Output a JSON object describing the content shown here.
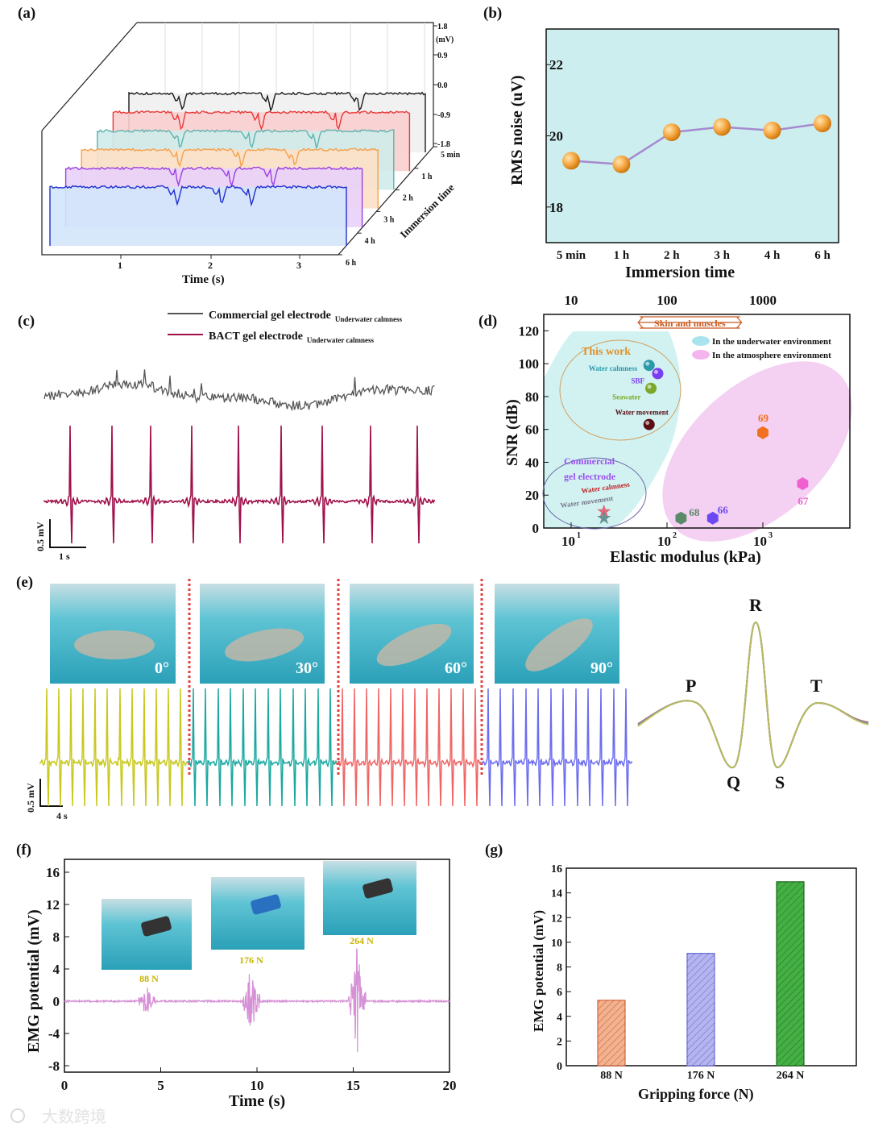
{
  "panel_labels": {
    "a": "(a)",
    "b": "(b)",
    "c": "(c)",
    "d": "(d)",
    "e": "(e)",
    "f": "(f)",
    "g": "(g)"
  },
  "watermark": "大数跨境",
  "chart_data": [
    {
      "panel": "a",
      "type": "line",
      "xlabel": "Time (s)",
      "x_ticks": [
        "1",
        "2",
        "3"
      ],
      "z_label": "Immersion time",
      "y_unit": "(mV)",
      "y_ticks": [
        "1.8",
        "0.9",
        "0.0",
        "-0.9",
        "-1.8"
      ],
      "ylim": [
        -1.8,
        1.8
      ],
      "series": [
        {
          "name": "5 min",
          "color": "#1a1a1a",
          "fill": "#efefef"
        },
        {
          "name": "1 h",
          "color": "#e83838",
          "fill": "#f9cfcf"
        },
        {
          "name": "2 h",
          "color": "#5fb3ad",
          "fill": "#cfeceb"
        },
        {
          "name": "3 h",
          "color": "#f5a04a",
          "fill": "#fde0c6"
        },
        {
          "name": "4 h",
          "color": "#9b3fe0",
          "fill": "#e9d2fb"
        },
        {
          "name": "6 h",
          "color": "#1f2fd0",
          "fill": "#d3e6fb"
        }
      ]
    },
    {
      "panel": "b",
      "type": "line",
      "xlabel": "Immersion time",
      "ylabel": "RMS noise (uV)",
      "categories": [
        "5 min",
        "1 h",
        "2 h",
        "3 h",
        "4 h",
        "6 h"
      ],
      "values": [
        19.3,
        19.2,
        20.1,
        20.25,
        20.15,
        20.35
      ],
      "ylim": [
        17,
        23
      ],
      "y_ticks": [
        18,
        20,
        22
      ],
      "background": "#cdeeee",
      "marker_color": "#f5a540",
      "line_color": "#a58ad0"
    },
    {
      "panel": "c",
      "type": "line",
      "legend": [
        {
          "name": "Commercial gel electrode",
          "sub": "Underwater calmness",
          "color": "#555555"
        },
        {
          "name": "BACT gel electrode",
          "sub": "Underwater calmness",
          "color": "#a0104a"
        }
      ],
      "scale_y": "0.5 mV",
      "scale_x": "1 s",
      "peak_count": 9
    },
    {
      "panel": "d",
      "type": "scatter",
      "xlabel": "Elastic modulus (kPa)",
      "ylabel": "SNR (dB)",
      "xscale": "log",
      "xlim": [
        5.2,
        8000
      ],
      "ylim": [
        0,
        130
      ],
      "x_ticks": [
        10,
        100,
        1000
      ],
      "x_tick_labels": [
        "10",
        "10",
        "10"
      ],
      "x_tick_exps": [
        "1",
        "2",
        "3"
      ],
      "top_ticks": [
        "10",
        "100",
        "1000"
      ],
      "y_ticks": [
        0,
        20,
        40,
        60,
        80,
        100,
        120
      ],
      "range_label": "Skin and muscles",
      "range": [
        50,
        600
      ],
      "legend": [
        {
          "name": "In the underwater environment",
          "color": "#a8e4ee"
        },
        {
          "name": "In the atmosphere environment",
          "color": "#f4b4ee"
        }
      ],
      "groups": [
        {
          "name": "This work",
          "color": "#e0902a"
        },
        {
          "name": "Commercial gel electrode",
          "color": "#9a50ee"
        }
      ],
      "points": [
        {
          "label": "Water calmness",
          "x": 65,
          "y": 99,
          "color": "#2a9aaa",
          "shape": "sphere",
          "group": "This work"
        },
        {
          "label": "SBF",
          "x": 80,
          "y": 94,
          "color": "#7a3ef0",
          "shape": "sphere",
          "group": "This work"
        },
        {
          "label": "Seawater",
          "x": 68,
          "y": 85,
          "color": "#7aa82a",
          "shape": "sphere",
          "group": "This work"
        },
        {
          "label": "Water movement",
          "x": 65,
          "y": 63,
          "color": "#5a0e14",
          "shape": "sphere",
          "group": "This work"
        },
        {
          "label": "Water calmness",
          "x": 22,
          "y": 10,
          "color": "#e05a6a",
          "shape": "star",
          "group": "Commercial gel electrode"
        },
        {
          "label": "Water movement",
          "x": 22,
          "y": 6,
          "color": "#5a8a8a",
          "shape": "star",
          "group": "Commercial gel electrode"
        },
        {
          "label": "68",
          "x": 140,
          "y": 6,
          "color": "#5a8a68",
          "shape": "hexagon"
        },
        {
          "label": "66",
          "x": 300,
          "y": 6,
          "color": "#6a4af0",
          "shape": "hexagon"
        },
        {
          "label": "69",
          "x": 1000,
          "y": 58,
          "color": "#f07020",
          "shape": "hexagon"
        },
        {
          "label": "67",
          "x": 2600,
          "y": 27,
          "color": "#f060d0",
          "shape": "hexagon"
        }
      ]
    },
    {
      "panel": "e",
      "type": "line",
      "angles": [
        {
          "label": "0°",
          "color": "#c8c81e"
        },
        {
          "label": "30°",
          "color": "#1aa8a0"
        },
        {
          "label": "60°",
          "color": "#f06464"
        },
        {
          "label": "90°",
          "color": "#6c6cf0"
        }
      ],
      "scale_y": "0.5 mV",
      "scale_x": "4 s",
      "wave_labels": [
        "P",
        "Q",
        "R",
        "S",
        "T"
      ]
    },
    {
      "panel": "f",
      "type": "line",
      "xlabel": "Time (s)",
      "ylabel": "EMG potential (mV)",
      "xlim": [
        0,
        20
      ],
      "ylim": [
        -8.8,
        17.6
      ],
      "x_ticks": [
        0,
        5,
        10,
        15,
        20
      ],
      "y_ticks": [
        -8,
        -4,
        0,
        4,
        8,
        12,
        16
      ],
      "line_color": "#d690d6",
      "bursts": [
        {
          "t": 4.3,
          "label": "88 N",
          "amp": 2.5
        },
        {
          "t": 9.7,
          "label": "176 N",
          "amp": 5
        },
        {
          "t": 15.2,
          "label": "264 N",
          "amp": 7.5
        }
      ],
      "label_color": "#c8b400"
    },
    {
      "panel": "g",
      "type": "bar",
      "xlabel": "Gripping force (N)",
      "ylabel": "EMG potential (mV)",
      "categories": [
        "88 N",
        "176 N",
        "264 N"
      ],
      "values": [
        5.3,
        9.1,
        14.9
      ],
      "ylim": [
        0,
        16
      ],
      "y_ticks": [
        0,
        2,
        4,
        6,
        8,
        10,
        12,
        14,
        16
      ],
      "colors": [
        "#f6b08c",
        "#b4b4f4",
        "#44b044"
      ],
      "stroke_colors": [
        "#d8643a",
        "#6a6ad8",
        "#1a6a1a"
      ]
    }
  ]
}
